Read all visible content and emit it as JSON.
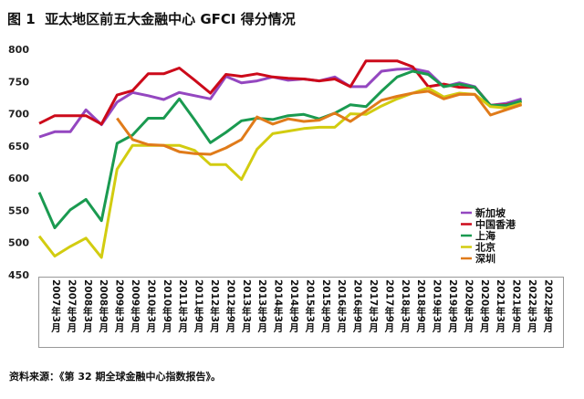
{
  "title": "图 1  亚太地区前五大金融中心 GFCI 得分情况",
  "source": "资料来源：《第 32 期全球金融中心指数报告》。",
  "chart_data": {
    "type": "line",
    "title": "",
    "xlabel": "",
    "ylabel": "",
    "ylim": [
      450,
      800
    ],
    "yticks": [
      450,
      500,
      550,
      600,
      650,
      700,
      750,
      800
    ],
    "grid": false,
    "legend_position": "bottom-right",
    "categories": [
      "2007年3月",
      "2007年9月",
      "2008年3月",
      "2008年9月",
      "2009年3月",
      "2009年9月",
      "2010年3月",
      "2010年9月",
      "2011年3月",
      "2011年9月",
      "2012年3月",
      "2012年9月",
      "2013年3月",
      "2013年9月",
      "2014年3月",
      "2014年9月",
      "2015年3月",
      "2015年9月",
      "2016年3月",
      "2016年9月",
      "2017年3月",
      "2017年9月",
      "2018年3月",
      "2018年9月",
      "2019年3月",
      "2019年9月",
      "2020年3月",
      "2020年9月",
      "2021年3月",
      "2021年9月",
      "2022年3月",
      "2022年9月"
    ],
    "series": [
      {
        "name": "新加坡",
        "color": "#9447c0",
        "values": [
          664,
          672,
          672,
          706,
          683,
          718,
          733,
          728,
          722,
          733,
          728,
          723,
          758,
          748,
          751,
          757,
          752,
          754,
          751,
          757,
          742,
          742,
          766,
          769,
          770,
          765,
          742,
          748,
          742,
          713,
          716,
          723
        ]
      },
      {
        "name": "中国香港",
        "color": "#cc0a1a",
        "values": [
          685,
          697,
          697,
          697,
          684,
          729,
          736,
          762,
          762,
          771,
          752,
          732,
          761,
          758,
          762,
          757,
          755,
          754,
          751,
          754,
          742,
          782,
          782,
          782,
          773,
          742,
          746,
          741,
          741,
          713,
          714,
          719
        ]
      },
      {
        "name": "上海",
        "color": "#1a9a50",
        "values": [
          578,
          523,
          551,
          567,
          534,
          654,
          667,
          693,
          693,
          723,
          690,
          655,
          671,
          689,
          693,
          691,
          697,
          699,
          692,
          701,
          714,
          711,
          735,
          757,
          766,
          761,
          742,
          746,
          741,
          713,
          713,
          720
        ]
      },
      {
        "name": "北京",
        "color": "#d2cc10",
        "values": [
          510,
          479,
          494,
          507,
          477,
          614,
          651,
          651,
          651,
          651,
          643,
          621,
          621,
          598,
          645,
          669,
          673,
          677,
          679,
          679,
          700,
          699,
          712,
          723,
          732,
          740,
          726,
          732,
          730,
          711,
          709,
          716
        ]
      },
      {
        "name": "深圳",
        "color": "#e07b1a",
        "values": [
          null,
          null,
          null,
          null,
          null,
          693,
          660,
          652,
          651,
          641,
          638,
          637,
          647,
          660,
          695,
          684,
          692,
          688,
          690,
          701,
          688,
          704,
          721,
          727,
          732,
          735,
          723,
          730,
          730,
          698,
          706,
          714
        ]
      }
    ]
  }
}
